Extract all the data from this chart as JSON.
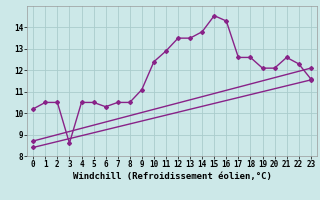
{
  "xlabel": "Windchill (Refroidissement éolien,°C)",
  "bg_color": "#cce8e8",
  "grid_color": "#aacccc",
  "line_color": "#882288",
  "xlim": [
    -0.5,
    23.5
  ],
  "ylim": [
    8,
    15
  ],
  "xticks": [
    0,
    1,
    2,
    3,
    4,
    5,
    6,
    7,
    8,
    9,
    10,
    11,
    12,
    13,
    14,
    15,
    16,
    17,
    18,
    19,
    20,
    21,
    22,
    23
  ],
  "yticks": [
    8,
    9,
    10,
    11,
    12,
    13,
    14
  ],
  "series1_x": [
    0,
    1,
    2,
    3,
    4,
    5,
    6,
    7,
    8,
    9,
    10,
    11,
    12,
    13,
    14,
    15,
    16,
    17,
    18,
    19,
    20,
    21,
    22,
    23
  ],
  "series1_y": [
    10.2,
    10.5,
    10.5,
    8.6,
    10.5,
    10.5,
    10.3,
    10.5,
    10.5,
    11.1,
    12.4,
    12.9,
    13.5,
    13.5,
    13.8,
    14.55,
    14.3,
    12.6,
    12.6,
    12.1,
    12.1,
    12.6,
    12.3,
    11.6
  ],
  "series2_x": [
    0,
    23
  ],
  "series2_y": [
    8.7,
    12.1
  ],
  "series3_x": [
    0,
    23
  ],
  "series3_y": [
    8.4,
    11.55
  ],
  "line_width": 1.0,
  "marker": "D",
  "marker_size": 2.0,
  "tick_fontsize": 5.5,
  "label_fontsize": 6.5
}
